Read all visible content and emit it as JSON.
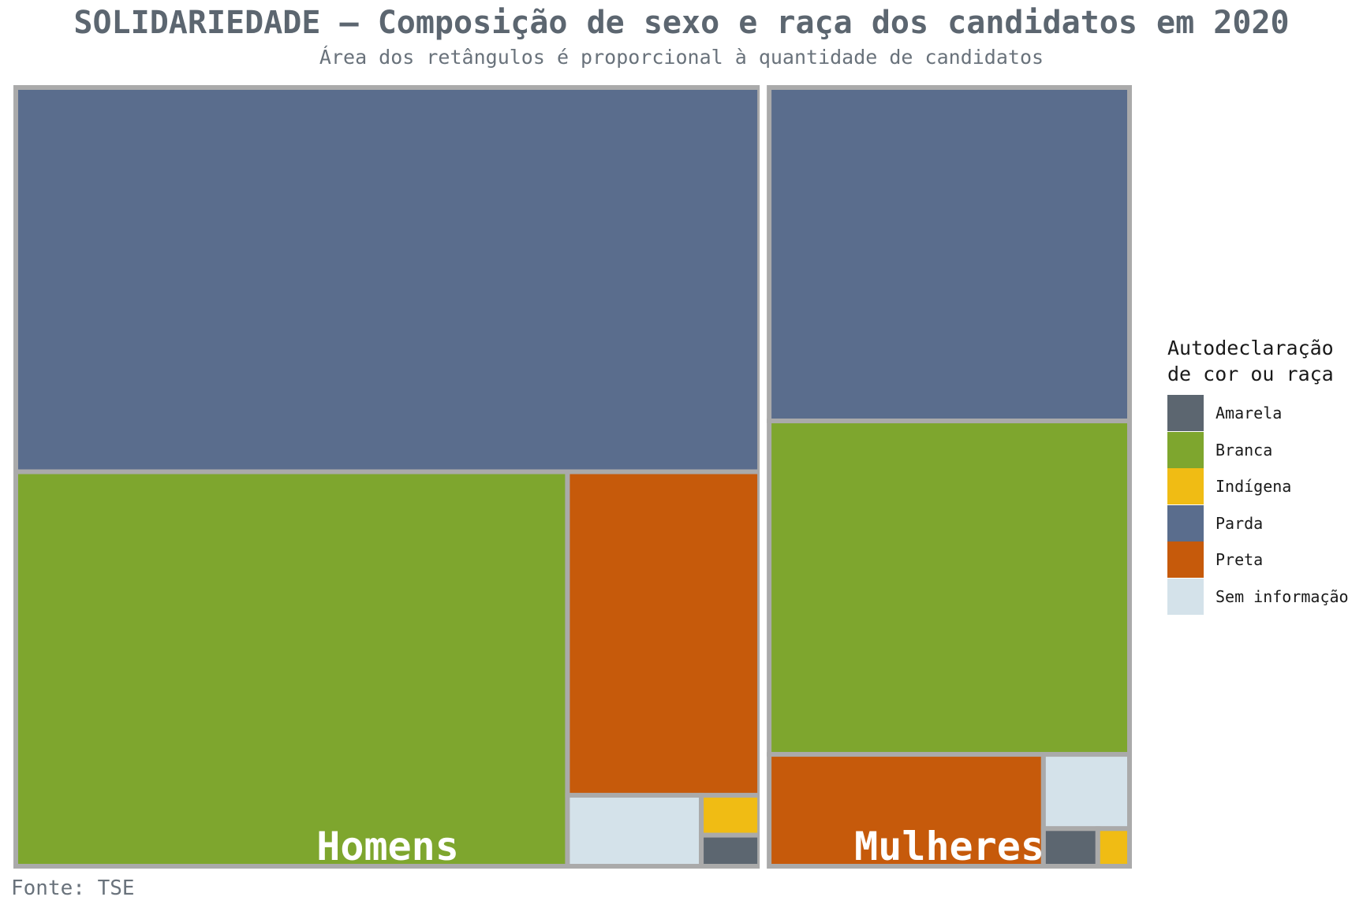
{
  "title": "SOLIDARIEDADE – Composição de sexo e raça dos candidatos em 2020",
  "subtitle": "Área dos retângulos é proporcional à quantidade de candidatos",
  "caption": "Fonte: TSE",
  "legend": {
    "title": "Autodeclaração\nde cor ou raça",
    "placement": "right",
    "items": [
      {
        "label": "Amarela",
        "color": "#5c6670"
      },
      {
        "label": "Branca",
        "color": "#7ea62e"
      },
      {
        "label": "Indígena",
        "color": "#f0bc14"
      },
      {
        "label": "Parda",
        "color": "#5a6d8d"
      },
      {
        "label": "Preta",
        "color": "#c65a0b"
      },
      {
        "label": "Sem informação",
        "color": "#d4e2ea"
      }
    ]
  },
  "chart_data": {
    "type": "treemap",
    "title": "SOLIDARIEDADE – Composição de sexo e raça dos candidatos em 2020",
    "subtitle": "Área dos retângulos é proporcional à quantidade de candidatos",
    "value_unit": "relative area (% of all candidates, estimated)",
    "groups": [
      {
        "name": "Homens",
        "children": [
          {
            "category": "Parda",
            "value": 33.1
          },
          {
            "category": "Branca",
            "value": 25.2
          },
          {
            "category": "Preta",
            "value": 7.2
          },
          {
            "category": "Sem informação",
            "value": 1.1
          },
          {
            "category": "Indígena",
            "value": 0.27
          },
          {
            "category": "Amarela",
            "value": 0.21
          }
        ]
      },
      {
        "name": "Mulheres",
        "children": [
          {
            "category": "Parda",
            "value": 14.1
          },
          {
            "category": "Branca",
            "value": 14.1
          },
          {
            "category": "Preta",
            "value": 3.6
          },
          {
            "category": "Sem informação",
            "value": 0.75
          },
          {
            "category": "Amarela",
            "value": 0.24
          },
          {
            "category": "Indígena",
            "value": 0.14
          }
        ]
      }
    ]
  }
}
